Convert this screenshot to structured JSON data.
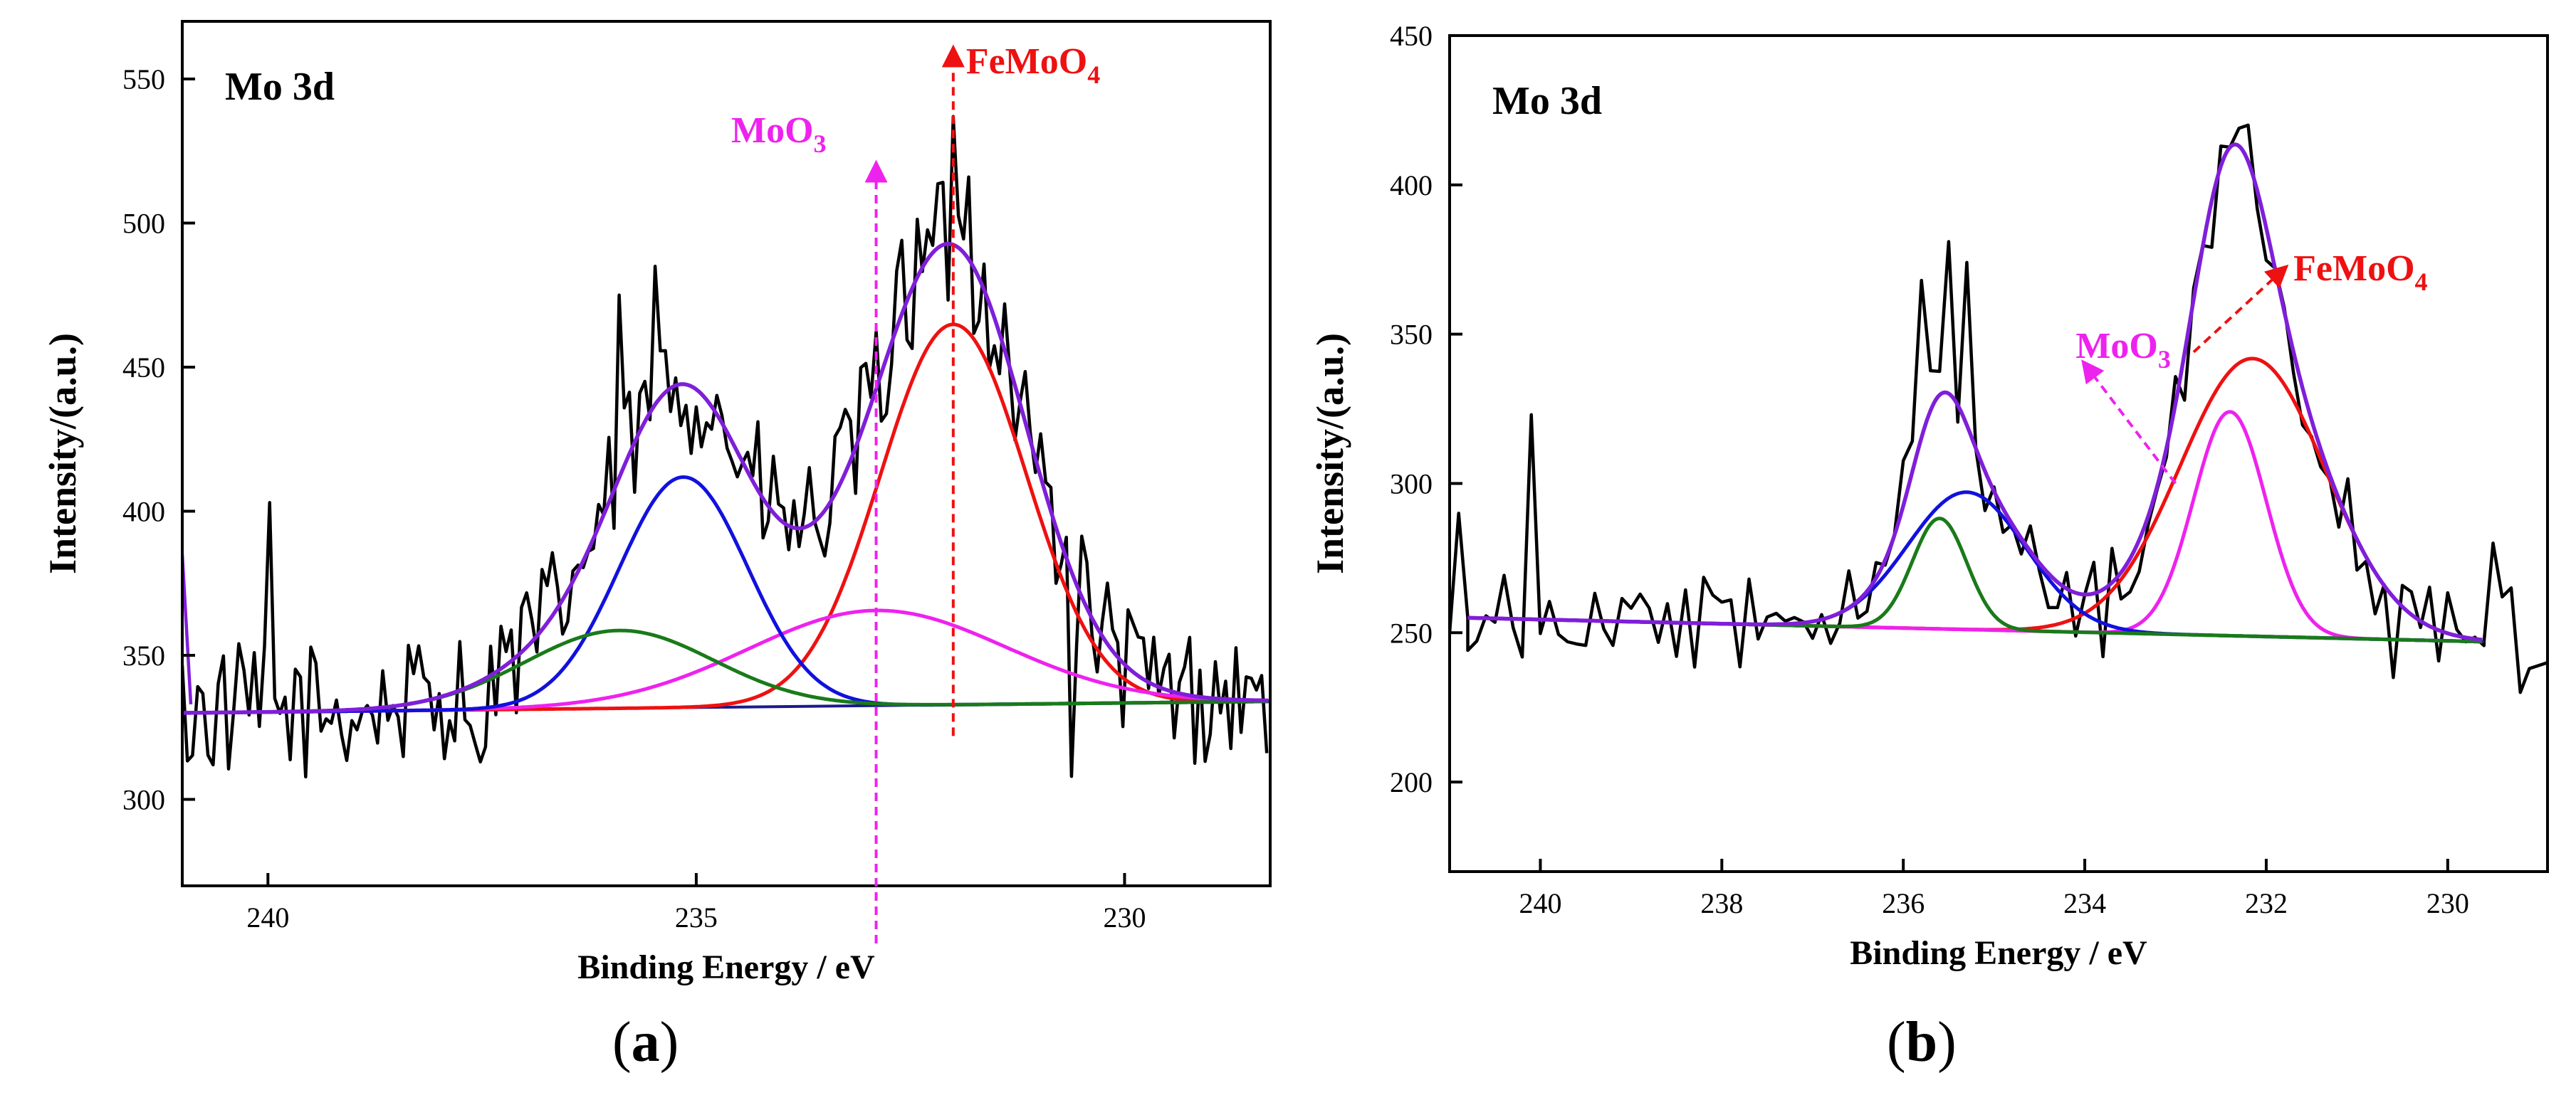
{
  "chart_data": [
    {
      "id": "a",
      "type": "line",
      "panel_label": "(a)",
      "panel_letter": "a",
      "title": "Mo 3d",
      "xlabel": "Binding Energy / eV",
      "ylabel": "Intensity/(a.u.)",
      "xlim": [
        241,
        228.3
      ],
      "ylim": [
        270,
        570
      ],
      "xticks": [
        240,
        235,
        230
      ],
      "yticks": [
        300,
        350,
        400,
        450,
        500,
        550
      ],
      "colors": {
        "raw": "#000000",
        "envelope": "#7f1fd9",
        "fe": "#ee1111",
        "moo3": "#ee22ee",
        "blue": "#1111dd",
        "green": "#1a7a1a",
        "baseline": "#1a1a8c"
      },
      "baseline": {
        "x": [
          241,
          228.3
        ],
        "y": [
          330,
          334
        ]
      },
      "components": [
        {
          "name": "FeMoO4",
          "color_key": "fe",
          "center": 232.0,
          "amp": 132,
          "sigma": 0.85
        },
        {
          "name": "MoO3",
          "color_key": "moo3",
          "center": 232.9,
          "amp": 33,
          "sigma": 1.5
        },
        {
          "name": "blue",
          "color_key": "blue",
          "center": 235.15,
          "amp": 80,
          "sigma": 0.75
        },
        {
          "name": "green",
          "color_key": "green",
          "center": 235.9,
          "amp": 27,
          "sigma": 1.1
        }
      ],
      "raw_noise": 24,
      "raw_spikes": [
        {
          "x": 240.0,
          "y": 403
        },
        {
          "x": 237.5,
          "y": 313
        },
        {
          "x": 235.9,
          "y": 475
        },
        {
          "x": 235.5,
          "y": 485
        },
        {
          "x": 232.6,
          "y": 494
        },
        {
          "x": 232.0,
          "y": 537
        },
        {
          "x": 231.8,
          "y": 516
        },
        {
          "x": 230.6,
          "y": 308
        },
        {
          "x": 228.9,
          "y": 330
        }
      ],
      "annotations": [
        {
          "label": "MoO",
          "sub": "3",
          "color": "#ee22ee",
          "x": 232.9,
          "text_y": 528,
          "arrow_from": 250,
          "arrow_to": 520
        },
        {
          "label": "FeMoO",
          "sub": "4",
          "color": "#ee1111",
          "x": 232.0,
          "text_y": 552,
          "arrow_from": 322,
          "arrow_to": 560
        }
      ]
    },
    {
      "id": "b",
      "type": "line",
      "panel_label": "(b)",
      "panel_letter": "b",
      "title": "Mo 3d",
      "xlabel": "Binding Energy / eV",
      "ylabel": "Intensity/(a.u.)",
      "xlim": [
        241,
        228.9
      ],
      "ylim": [
        170,
        450
      ],
      "xticks": [
        240,
        238,
        236,
        234,
        232,
        230
      ],
      "yticks": [
        200,
        250,
        300,
        350,
        400,
        450
      ],
      "colors": {
        "raw": "#000000",
        "envelope": "#7f1fd9",
        "fe": "#ee1111",
        "moo3": "#ee22ee",
        "blue": "#1111dd",
        "green": "#1a7a1a",
        "baseline": "#1a1a8c"
      },
      "baseline": {
        "x": [
          240.8,
          229.6
        ],
        "y": [
          255,
          247
        ]
      },
      "components": [
        {
          "name": "FeMoO4",
          "color_key": "fe",
          "center": 232.15,
          "amp": 93,
          "sigma": 0.8
        },
        {
          "name": "MoO3",
          "color_key": "moo3",
          "center": 232.4,
          "amp": 75,
          "sigma": 0.4
        },
        {
          "name": "blue",
          "color_key": "blue",
          "center": 235.3,
          "amp": 46,
          "sigma": 0.65
        },
        {
          "name": "green",
          "color_key": "green",
          "center": 235.6,
          "amp": 37,
          "sigma": 0.3
        }
      ],
      "raw_noise": 16,
      "raw_spikes": [
        {
          "x": 240.1,
          "y": 323
        },
        {
          "x": 235.8,
          "y": 368
        },
        {
          "x": 235.5,
          "y": 381
        },
        {
          "x": 235.3,
          "y": 374
        },
        {
          "x": 232.5,
          "y": 413
        },
        {
          "x": 232.2,
          "y": 420
        },
        {
          "x": 233.8,
          "y": 242
        },
        {
          "x": 230.6,
          "y": 235
        }
      ],
      "edge_points": [
        {
          "x": 241.0,
          "y": 250
        },
        {
          "x": 240.9,
          "y": 290
        },
        {
          "x": 240.8,
          "y": 255
        },
        {
          "x": 229.6,
          "y": 247
        },
        {
          "x": 229.5,
          "y": 280
        },
        {
          "x": 229.4,
          "y": 262
        },
        {
          "x": 229.3,
          "y": 265
        },
        {
          "x": 229.2,
          "y": 230
        },
        {
          "x": 229.1,
          "y": 238
        },
        {
          "x": 228.9,
          "y": 240
        }
      ],
      "annotations": [
        {
          "label": "MoO",
          "sub": "3",
          "color": "#ee22ee",
          "text_x": 234.1,
          "text_y": 342,
          "arrow_start": [
            233.0,
            300
          ],
          "arrow_end": [
            234.0,
            340
          ]
        },
        {
          "label": "FeMoO",
          "sub": "4",
          "color": "#ee1111",
          "text_x": 231.7,
          "text_y": 368,
          "arrow_start": [
            232.8,
            344
          ],
          "arrow_end": [
            231.8,
            372
          ]
        }
      ]
    }
  ]
}
